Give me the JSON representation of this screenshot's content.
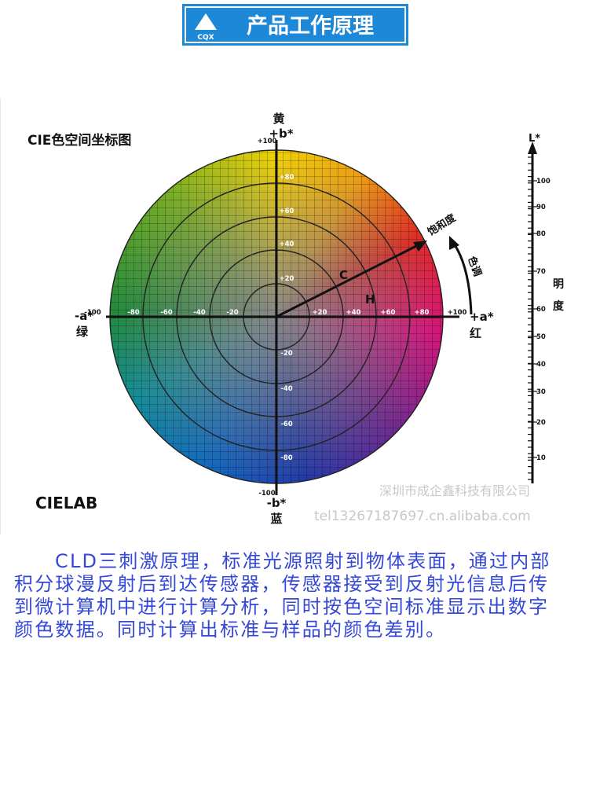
{
  "header": {
    "logo": "CQX",
    "title": "产品工作原理"
  },
  "diagram": {
    "title": "CIE色空间坐标图",
    "subtitle": "CIELAB",
    "b_plus_name": "黄",
    "b_plus": "+b*",
    "b_minus": "-b*",
    "b_minus_name": "蓝",
    "a_minus": "-a*",
    "a_minus_name": "绿",
    "a_plus": "+a*",
    "a_plus_name": "红",
    "chroma_label": "饱和度",
    "hue_label": "色调",
    "c_label": "C",
    "h_label": "H",
    "a_ticks": [
      "-100",
      "-80",
      "-60",
      "-40",
      "-20",
      "+20",
      "+40",
      "+60",
      "+80",
      "+100"
    ],
    "b_ticks": [
      "+100",
      "+80",
      "+60",
      "+40",
      "+20",
      "-20",
      "-40",
      "-60",
      "-80",
      "-100"
    ],
    "lightness": {
      "label": "L*",
      "name_1": "明",
      "name_2": "度",
      "ticks": [
        "100",
        "90",
        "80",
        "70",
        "60",
        "50",
        "40",
        "30",
        "20",
        "10"
      ]
    },
    "watermark_1": "深圳市成企鑫科技有限公司",
    "watermark_2": "tel13267187697.cn.alibaba.com"
  },
  "paragraph": {
    "lines": [
      "CLD三刺激原理，标准光源照射到物体表面，通过内部",
      "积分球漫反射后到达传感器，传感器接受到反射光信息后传",
      "到微计算机中进行计算分析，同时按色空间标准显示出数字",
      "颜色数据。同时计算出标准与样品的颜色差别。"
    ]
  }
}
